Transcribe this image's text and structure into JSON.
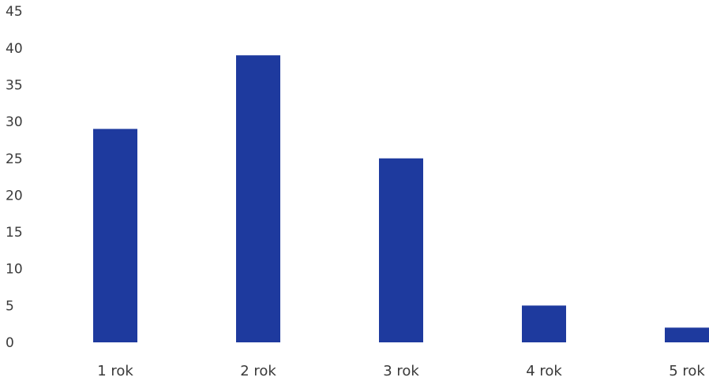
{
  "chart_data": {
    "type": "bar",
    "categories": [
      "1 rok",
      "2 rok",
      "3 rok",
      "4 rok",
      "5 rok"
    ],
    "values": [
      29,
      39,
      25,
      5,
      2
    ],
    "title": "",
    "xlabel": "",
    "ylabel": "",
    "ylim": [
      0,
      45
    ],
    "yticks": [
      0,
      5,
      10,
      15,
      20,
      25,
      30,
      35,
      40,
      45
    ],
    "grid": false,
    "legend": "none",
    "bar_color": "#1e3a9e"
  }
}
